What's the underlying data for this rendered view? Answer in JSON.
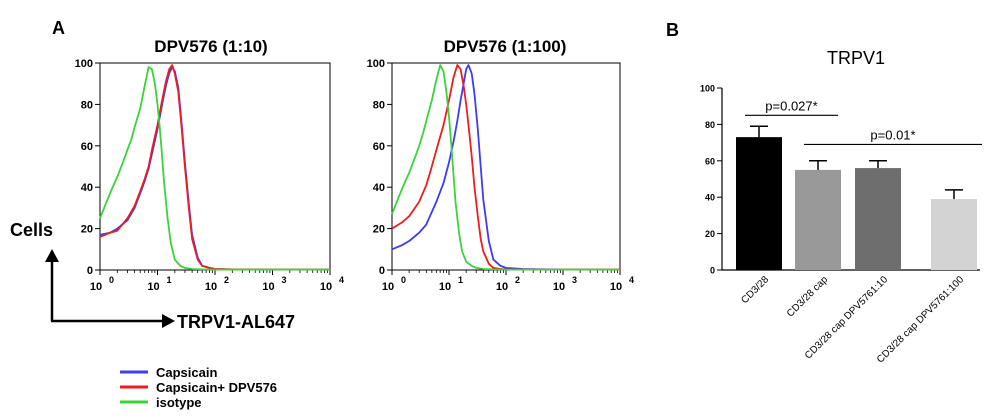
{
  "panel_a_label": "A",
  "panel_b_label": "B",
  "y_axis_label": "Cells",
  "x_axis_label": "TRPV1-AL647",
  "legend": [
    {
      "label": "Capsicain",
      "color": "#3c3cf0"
    },
    {
      "label": "Capsicain+ DPV576",
      "color": "#ee1c1c"
    },
    {
      "label": "isotype",
      "color": "#3ad33a"
    }
  ],
  "chart_data": [
    {
      "type": "line",
      "title": "DPV576 (1:10)",
      "x_scale": "log",
      "xlim": [
        1,
        10000
      ],
      "ylim": [
        0,
        100
      ],
      "y_ticks": [
        "0",
        "20",
        "40",
        "60",
        "80",
        "100"
      ],
      "x_ticks": [
        {
          "base": "10",
          "exp": "0"
        },
        {
          "base": "10",
          "exp": "1"
        },
        {
          "base": "10",
          "exp": "2"
        },
        {
          "base": "10",
          "exp": "3"
        },
        {
          "base": "10",
          "exp": "4"
        }
      ],
      "series": [
        {
          "name": "Capsicain",
          "color": "#3c3cf0",
          "x": [
            1,
            1.5,
            2,
            3,
            4,
            5,
            6,
            7,
            8,
            10,
            12,
            14,
            16,
            18,
            20,
            23,
            26,
            30,
            35,
            40,
            50,
            60,
            80,
            100,
            200,
            1000,
            10000
          ],
          "y": [
            17,
            18,
            20,
            24,
            30,
            37,
            43,
            49,
            56,
            68,
            80,
            89,
            95,
            98,
            96,
            88,
            72,
            52,
            32,
            17,
            6,
            2,
            1,
            0.5,
            0.3,
            0.2,
            0.2
          ]
        },
        {
          "name": "Capsicain+ DPV576",
          "color": "#ee1c1c",
          "x": [
            1,
            1.5,
            2,
            3,
            4,
            5,
            6,
            7,
            8,
            10,
            12,
            14,
            16,
            18,
            20,
            23,
            26,
            30,
            35,
            40,
            50,
            60,
            80,
            100,
            200,
            1000,
            10000
          ],
          "y": [
            16,
            18,
            19,
            25,
            31,
            38,
            44,
            50,
            58,
            70,
            82,
            91,
            97,
            99,
            95,
            86,
            70,
            50,
            30,
            15,
            5,
            2,
            1,
            0.5,
            0.3,
            0.2,
            0.2
          ]
        },
        {
          "name": "isotype",
          "color": "#3ad33a",
          "x": [
            1,
            1.3,
            1.6,
            2,
            2.5,
            3,
            3.5,
            4,
            5,
            6,
            7,
            8,
            9,
            10,
            11,
            12,
            13,
            15,
            17,
            20,
            25,
            30,
            40,
            60,
            100,
            1000,
            10000
          ],
          "y": [
            25,
            33,
            39,
            45,
            52,
            58,
            63,
            69,
            78,
            89,
            98,
            97,
            90,
            80,
            68,
            55,
            42,
            25,
            13,
            5,
            2,
            1,
            0.5,
            0.3,
            0.2,
            0.2,
            0.2
          ]
        }
      ]
    },
    {
      "type": "line",
      "title": "DPV576 (1:100)",
      "x_scale": "log",
      "xlim": [
        1,
        10000
      ],
      "ylim": [
        0,
        100
      ],
      "y_ticks": [
        "0",
        "20",
        "40",
        "60",
        "80",
        "100"
      ],
      "x_ticks": [
        {
          "base": "10",
          "exp": "0"
        },
        {
          "base": "10",
          "exp": "1"
        },
        {
          "base": "10",
          "exp": "2"
        },
        {
          "base": "10",
          "exp": "3"
        },
        {
          "base": "10",
          "exp": "4"
        }
      ],
      "series": [
        {
          "name": "Capsicain",
          "color": "#3c3cf0",
          "x": [
            1,
            1.5,
            2,
            3,
            4,
            5,
            6,
            8,
            10,
            12,
            14,
            16,
            18,
            20,
            22,
            25,
            28,
            32,
            36,
            40,
            50,
            60,
            80,
            100,
            200,
            1000,
            10000
          ],
          "y": [
            10,
            12,
            14,
            18,
            22,
            28,
            33,
            42,
            52,
            62,
            72,
            82,
            90,
            97,
            99,
            95,
            85,
            68,
            50,
            34,
            14,
            5,
            2,
            1,
            0.5,
            0.2,
            0.2
          ]
        },
        {
          "name": "Capsicain+ DPV576",
          "color": "#ee1c1c",
          "x": [
            1,
            1.5,
            2,
            3,
            4,
            5,
            6,
            8,
            10,
            12,
            14,
            16,
            18,
            20,
            22,
            25,
            28,
            32,
            36,
            40,
            50,
            60,
            80,
            100,
            200,
            1000,
            10000
          ],
          "y": [
            20,
            23,
            26,
            33,
            41,
            50,
            58,
            70,
            82,
            93,
            99,
            97,
            89,
            80,
            70,
            55,
            40,
            26,
            15,
            9,
            3,
            1,
            0.5,
            0.3,
            0.2,
            0.2,
            0.2
          ]
        },
        {
          "name": "isotype",
          "color": "#3ad33a",
          "x": [
            1,
            1.3,
            1.6,
            2,
            2.5,
            3,
            3.5,
            4,
            5,
            6,
            7,
            8,
            9,
            10,
            11,
            12,
            13,
            15,
            17,
            20,
            25,
            30,
            40,
            60,
            100,
            1000,
            10000
          ],
          "y": [
            27,
            35,
            41,
            47,
            54,
            60,
            66,
            72,
            82,
            92,
            99,
            96,
            86,
            74,
            60,
            46,
            33,
            18,
            9,
            4,
            2,
            1,
            0.5,
            0.3,
            0.2,
            0.2,
            0.2
          ]
        }
      ]
    },
    {
      "type": "bar",
      "title": "TRPV1",
      "categories": [
        "CD3/28",
        "CD3/28 cap",
        "CD3/28 cap DPV5761:10",
        "CD3/28 cap DPV5761:100"
      ],
      "values": [
        73,
        55,
        56,
        39
      ],
      "errors": [
        6,
        5,
        4,
        5
      ],
      "colors": [
        "#000000",
        "#999999",
        "#6e6e6e",
        "#d3d3d3"
      ],
      "ylim": [
        0,
        100
      ],
      "y_ticks": [
        "0",
        "20",
        "40",
        "60",
        "80",
        "100"
      ],
      "annotations": [
        {
          "text": "p=0.027*",
          "from": 0,
          "to": 1,
          "y": 85
        },
        {
          "text": "p=0.01*",
          "from": 1,
          "to": 3,
          "y": 69
        }
      ]
    }
  ]
}
